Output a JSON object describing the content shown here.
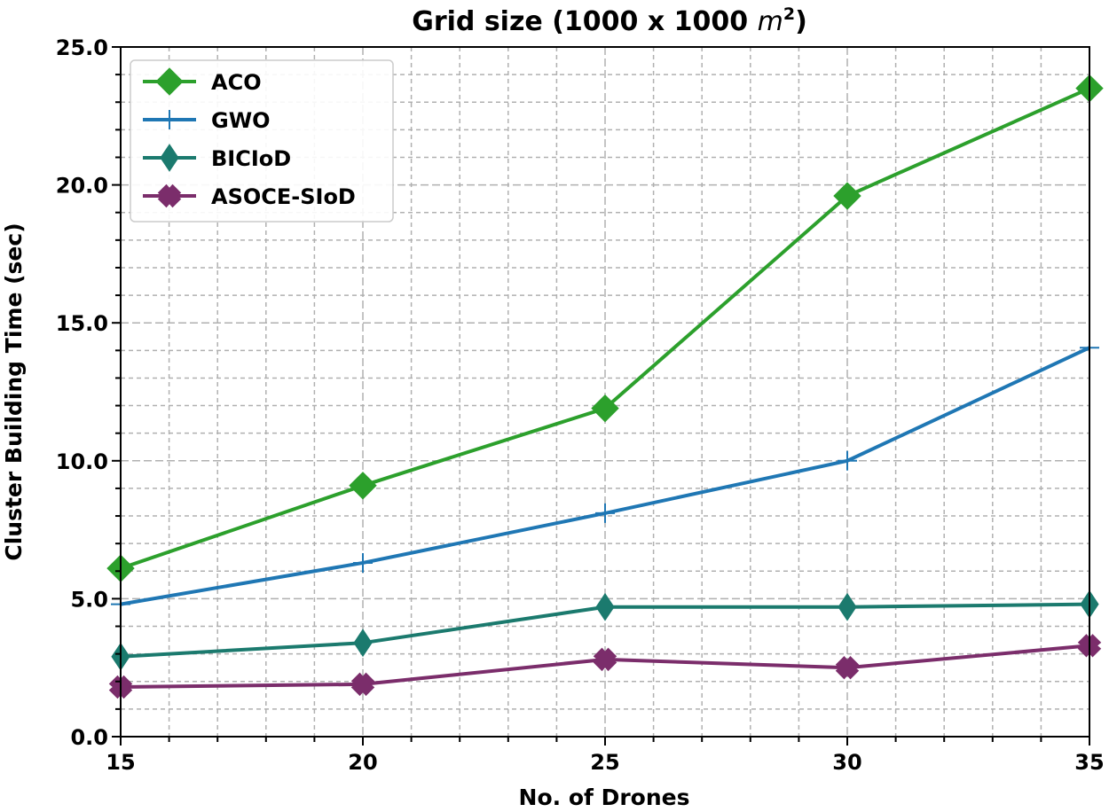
{
  "chart_data": {
    "type": "line",
    "title": "Grid size (1000 x 1000 m²)",
    "title_parts": {
      "main": "Grid size (1000 x 1000 ",
      "unit": "m",
      "exponent": "2",
      "close": ")"
    },
    "xlabel": "No. of Drones",
    "ylabel": "Cluster Building Time (sec)",
    "x": [
      15,
      20,
      25,
      30,
      35
    ],
    "xlim": [
      15,
      35
    ],
    "ylim": [
      0,
      25
    ],
    "x_ticks": [
      "15",
      "20",
      "25",
      "30",
      "35"
    ],
    "y_ticks": [
      "0.0",
      "5.0",
      "10.0",
      "15.0",
      "20.0",
      "25.0"
    ],
    "grid": true,
    "legend_position": "top-left",
    "series": [
      {
        "name": "ACO",
        "color": "#2ca02c",
        "marker": "diamond",
        "values": [
          6.1,
          9.1,
          11.9,
          19.6,
          23.5
        ]
      },
      {
        "name": "GWO",
        "color": "#1f77b4",
        "marker": "plus",
        "values": [
          4.8,
          6.3,
          8.1,
          10.0,
          14.1
        ]
      },
      {
        "name": "BICIoD",
        "color": "#1b7a6e",
        "marker": "thin-diamond",
        "values": [
          2.9,
          3.4,
          4.7,
          4.7,
          4.8
        ]
      },
      {
        "name": "ASOCE-SIoD",
        "color": "#7b2d6b",
        "marker": "x",
        "values": [
          1.8,
          1.9,
          2.8,
          2.5,
          3.3
        ]
      }
    ]
  }
}
